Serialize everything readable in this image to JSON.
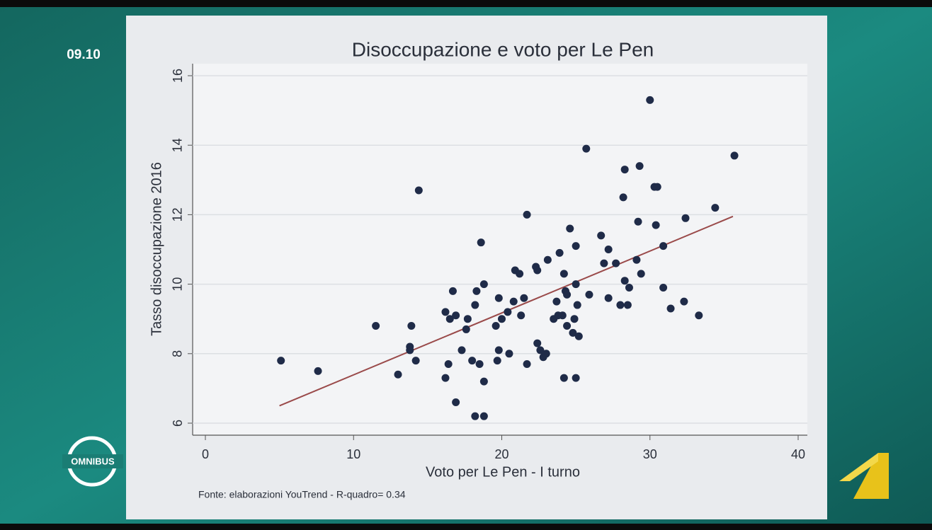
{
  "broadcast": {
    "clock": "09.10",
    "show": "OMNIBUS"
  },
  "chart_data": {
    "type": "scatter",
    "title": "Disoccupazione e voto per Le Pen",
    "x_label": "Voto per Le Pen - I turno",
    "y_label": "Tasso disoccupazione 2016",
    "source": "Fonte: elaborazioni YouTrend - R-quadro= 0.34",
    "xlim": [
      0,
      40
    ],
    "xticks": [
      0,
      10,
      20,
      30,
      40
    ],
    "ylim": [
      6,
      16
    ],
    "yticks": [
      6,
      8,
      10,
      12,
      14,
      16
    ],
    "grid": true,
    "color": "#1f2b48",
    "points": {
      "x": [
        5.1,
        7.6,
        11.5,
        13.0,
        13.8,
        13.8,
        13.9,
        14.2,
        14.4,
        16.2,
        16.2,
        16.4,
        16.5,
        16.7,
        16.9,
        16.9,
        17.3,
        17.6,
        17.7,
        18.0,
        18.2,
        18.3,
        18.2,
        18.5,
        18.6,
        18.8,
        18.8,
        18.8,
        19.6,
        19.7,
        19.8,
        19.8,
        20.0,
        20.4,
        20.5,
        20.8,
        20.9,
        21.2,
        21.3,
        21.5,
        21.7,
        21.7,
        22.3,
        22.4,
        22.4,
        22.6,
        22.8,
        23.0,
        23.1,
        23.5,
        23.7,
        23.8,
        23.9,
        24.1,
        24.2,
        24.2,
        24.3,
        24.4,
        24.4,
        24.6,
        24.8,
        24.9,
        25.0,
        25.0,
        25.0,
        25.1,
        25.2,
        25.7,
        25.9,
        26.7,
        26.9,
        27.2,
        27.2,
        27.7,
        28.0,
        28.2,
        28.3,
        28.3,
        28.5,
        28.6,
        29.1,
        29.2,
        29.3,
        29.4,
        30.0,
        30.3,
        30.5,
        30.4,
        30.9,
        30.9,
        31.4,
        32.3,
        32.4,
        33.3,
        34.4,
        35.7
      ],
      "y": [
        7.8,
        7.5,
        8.8,
        7.4,
        8.2,
        8.1,
        8.8,
        7.8,
        12.7,
        9.2,
        7.3,
        7.7,
        9.0,
        9.8,
        6.6,
        9.1,
        8.1,
        8.7,
        9.0,
        7.8,
        9.4,
        9.8,
        6.2,
        7.7,
        11.2,
        10.0,
        7.2,
        6.2,
        8.8,
        7.8,
        9.6,
        8.1,
        9.0,
        9.2,
        8.0,
        9.5,
        10.4,
        10.3,
        9.1,
        9.6,
        12.0,
        7.7,
        10.5,
        10.4,
        8.3,
        8.1,
        7.9,
        8.0,
        10.7,
        9.0,
        9.5,
        9.1,
        10.9,
        9.1,
        7.3,
        10.3,
        9.8,
        9.7,
        8.8,
        11.6,
        8.6,
        9.0,
        11.1,
        7.3,
        10.0,
        9.4,
        8.5,
        13.9,
        9.7,
        11.4,
        10.6,
        9.6,
        11.0,
        10.6,
        9.4,
        12.5,
        13.3,
        10.1,
        9.4,
        9.9,
        10.7,
        11.8,
        13.4,
        10.3,
        15.3,
        12.8,
        12.8,
        11.7,
        11.1,
        9.9,
        9.3,
        9.5,
        11.9,
        9.1,
        12.2,
        13.7
      ]
    },
    "fit_line": {
      "x": [
        5,
        35.6
      ],
      "y": [
        6.5,
        11.95
      ],
      "color": "#9a4a4a"
    }
  }
}
